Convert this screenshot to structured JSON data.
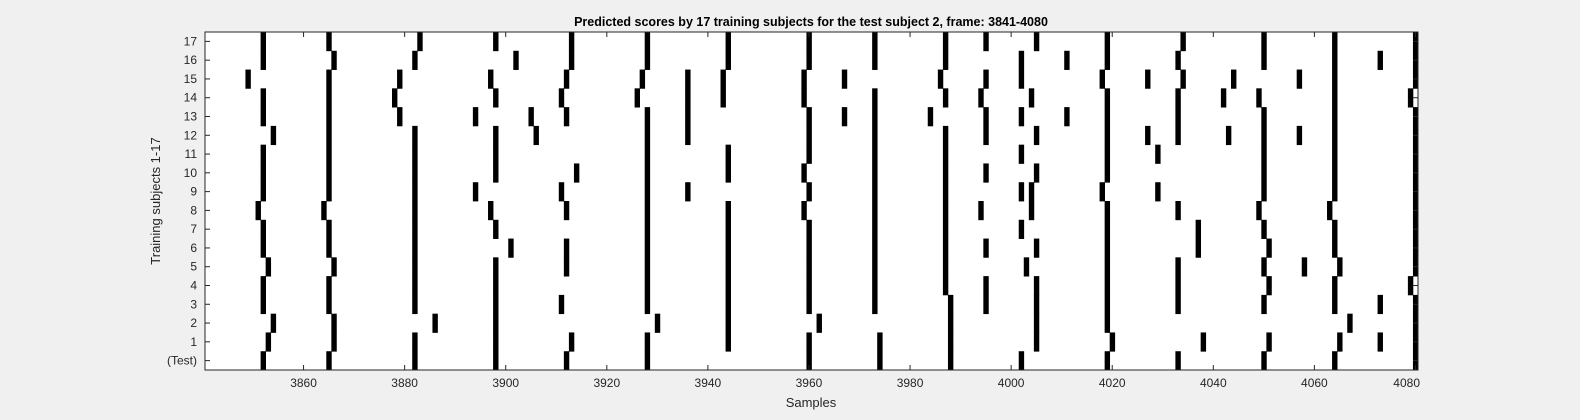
{
  "chart_data": {
    "type": "heatmap",
    "title": "Predicted scores by 17 training subjects for the test subject 2, frame: 3841-4080",
    "xlabel": "Samples",
    "ylabel": "Training subjects 1-17",
    "xlim": [
      3841,
      4080
    ],
    "xticks": [
      3860,
      3880,
      3900,
      3920,
      3940,
      3960,
      3980,
      4000,
      4020,
      4040,
      4060,
      4080
    ],
    "row_labels": [
      "(Test)",
      "1",
      "2",
      "3",
      "4",
      "5",
      "6",
      "7",
      "8",
      "9",
      "10",
      "11",
      "12",
      "13",
      "14",
      "15",
      "16",
      "17"
    ],
    "grid": false,
    "background_color": "#ffffff",
    "mark_color": "#000000",
    "rows": [
      {
        "label": "(Test)",
        "samples": [
          3852,
          3865,
          3882,
          3898,
          3912,
          3928,
          3960,
          3974,
          3988,
          4002,
          4019,
          4033,
          4050,
          4064,
          4080
        ]
      },
      {
        "label": "1",
        "samples": [
          3853,
          3866,
          3882,
          3898,
          3913,
          3928,
          3944,
          3960,
          3974,
          3988,
          4005,
          4020,
          4038,
          4051,
          4065,
          4073,
          4080
        ]
      },
      {
        "label": "2",
        "samples": [
          3854,
          3866,
          3886,
          3898,
          3930,
          3944,
          3962,
          3988,
          4005,
          4019,
          4067,
          4080
        ]
      },
      {
        "label": "3",
        "samples": [
          3852,
          3865,
          3882,
          3898,
          3911,
          3928,
          3944,
          3960,
          3973,
          3988,
          3995,
          4005,
          4019,
          4033,
          4050,
          4064,
          4073,
          4080
        ]
      },
      {
        "label": "4",
        "samples": [
          3852,
          3865,
          3882,
          3898,
          3928,
          3944,
          3960,
          3973,
          3987,
          3995,
          4005,
          4019,
          4033,
          4051,
          4064,
          4079
        ]
      },
      {
        "label": "5",
        "samples": [
          3853,
          3866,
          3882,
          3898,
          3912,
          3928,
          3944,
          3960,
          3973,
          3987,
          4003,
          4019,
          4033,
          4050,
          4058,
          4065,
          4080
        ]
      },
      {
        "label": "6",
        "samples": [
          3852,
          3865,
          3882,
          3901,
          3912,
          3928,
          3944,
          3960,
          3973,
          3987,
          3995,
          4005,
          4019,
          4037,
          4051,
          4064,
          4080
        ]
      },
      {
        "label": "7",
        "samples": [
          3852,
          3865,
          3882,
          3898,
          3928,
          3944,
          3960,
          3973,
          3987,
          4002,
          4019,
          4037,
          4050,
          4064,
          4080
        ]
      },
      {
        "label": "8",
        "samples": [
          3851,
          3864,
          3882,
          3897,
          3912,
          3928,
          3944,
          3959,
          3973,
          3987,
          3994,
          4004,
          4019,
          4033,
          4049,
          4063,
          4080
        ]
      },
      {
        "label": "9",
        "samples": [
          3852,
          3865,
          3882,
          3894,
          3911,
          3928,
          3936,
          3960,
          3973,
          3987,
          4002,
          4004,
          4018,
          4029,
          4050,
          4064,
          4080
        ]
      },
      {
        "label": "10",
        "samples": [
          3852,
          3865,
          3882,
          3898,
          3914,
          3928,
          3944,
          3959,
          3973,
          3987,
          3995,
          4005,
          4019,
          4050,
          4064,
          4080
        ]
      },
      {
        "label": "11",
        "samples": [
          3852,
          3865,
          3882,
          3898,
          3928,
          3944,
          3960,
          3973,
          3987,
          4002,
          4019,
          4029,
          4050,
          4064,
          4080
        ]
      },
      {
        "label": "12",
        "samples": [
          3854,
          3865,
          3882,
          3898,
          3906,
          3928,
          3936,
          3960,
          3973,
          3987,
          3995,
          4005,
          4019,
          4027,
          4033,
          4043,
          4050,
          4057,
          4064,
          4080
        ]
      },
      {
        "label": "13",
        "samples": [
          3852,
          3865,
          3879,
          3894,
          3905,
          3912,
          3928,
          3936,
          3960,
          3967,
          3973,
          3984,
          3995,
          4002,
          4011,
          4019,
          4033,
          4050,
          4064,
          4080
        ]
      },
      {
        "label": "14",
        "samples": [
          3852,
          3865,
          3878,
          3898,
          3911,
          3926,
          3936,
          3943,
          3959,
          3973,
          3987,
          3994,
          4004,
          4019,
          4033,
          4042,
          4049,
          4064,
          4079
        ]
      },
      {
        "label": "15",
        "samples": [
          3849,
          3865,
          3879,
          3897,
          3912,
          3927,
          3936,
          3943,
          3959,
          3967,
          3986,
          3995,
          4002,
          4018,
          4027,
          4034,
          4044,
          4057,
          4064,
          4080
        ]
      },
      {
        "label": "16",
        "samples": [
          3852,
          3866,
          3882,
          3902,
          3913,
          3928,
          3944,
          3960,
          3973,
          3987,
          4002,
          4011,
          4019,
          4033,
          4050,
          4064,
          4073,
          4080
        ]
      },
      {
        "label": "17",
        "samples": [
          3852,
          3865,
          3883,
          3898,
          3913,
          3928,
          3944,
          3960,
          3973,
          3987,
          3995,
          4005,
          4019,
          4034,
          4050,
          4064,
          4080
        ]
      }
    ]
  }
}
